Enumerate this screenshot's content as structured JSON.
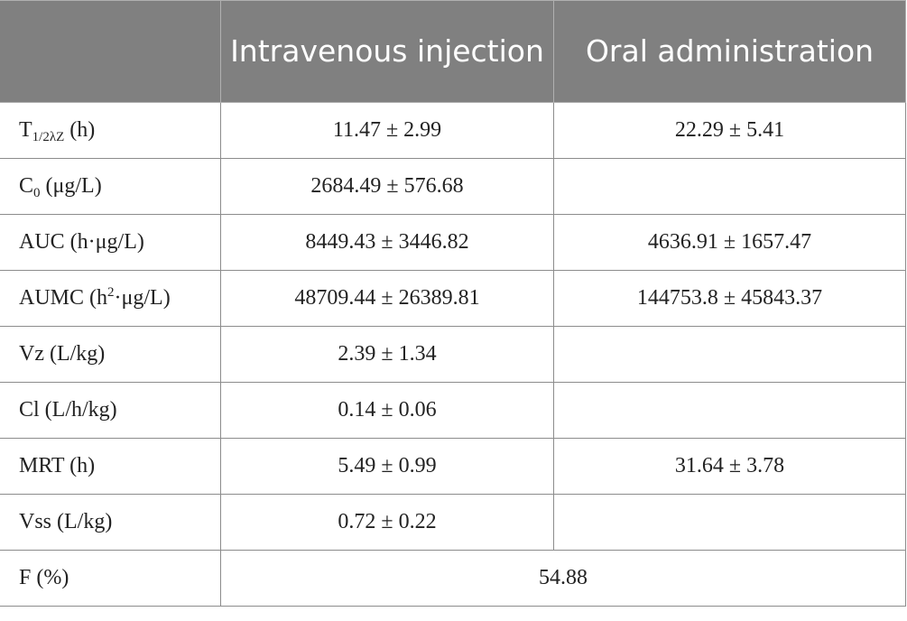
{
  "header": {
    "col_parameter": "",
    "col_iv": "Intravenous injection",
    "col_oral": "Oral administration"
  },
  "rows": [
    {
      "param_main": "T",
      "param_sub": "1/2λZ",
      "param_rest": " (h)",
      "iv": "11.47 ± 2.99",
      "oral": "22.29 ± 5.41"
    },
    {
      "param_main": "C",
      "param_sub": "0",
      "param_rest": " (μg/L)",
      "iv": "2684.49 ± 576.68",
      "oral": ""
    },
    {
      "param_main": "AUC (h·μg/L)",
      "iv": "8449.43 ± 3446.82",
      "oral": "4636.91 ± 1657.47"
    },
    {
      "param_main": "AUMC (h",
      "param_sup": "2",
      "param_rest": "·μg/L)",
      "iv": "48709.44 ± 26389.81",
      "oral": "144753.8 ± 45843.37"
    },
    {
      "param_main": "Vz (L/kg)",
      "iv": "2.39 ± 1.34",
      "oral": ""
    },
    {
      "param_main": "Cl (L/h/kg)",
      "iv": "0.14 ± 0.06",
      "oral": ""
    },
    {
      "param_main": "MRT (h)",
      "iv": "5.49 ± 0.99",
      "oral": "31.64 ± 3.78"
    },
    {
      "param_main": "Vss (L/kg)",
      "iv": "0.72 ± 0.22",
      "oral": ""
    },
    {
      "param_main": "F (%)",
      "combined": "54.88"
    }
  ]
}
